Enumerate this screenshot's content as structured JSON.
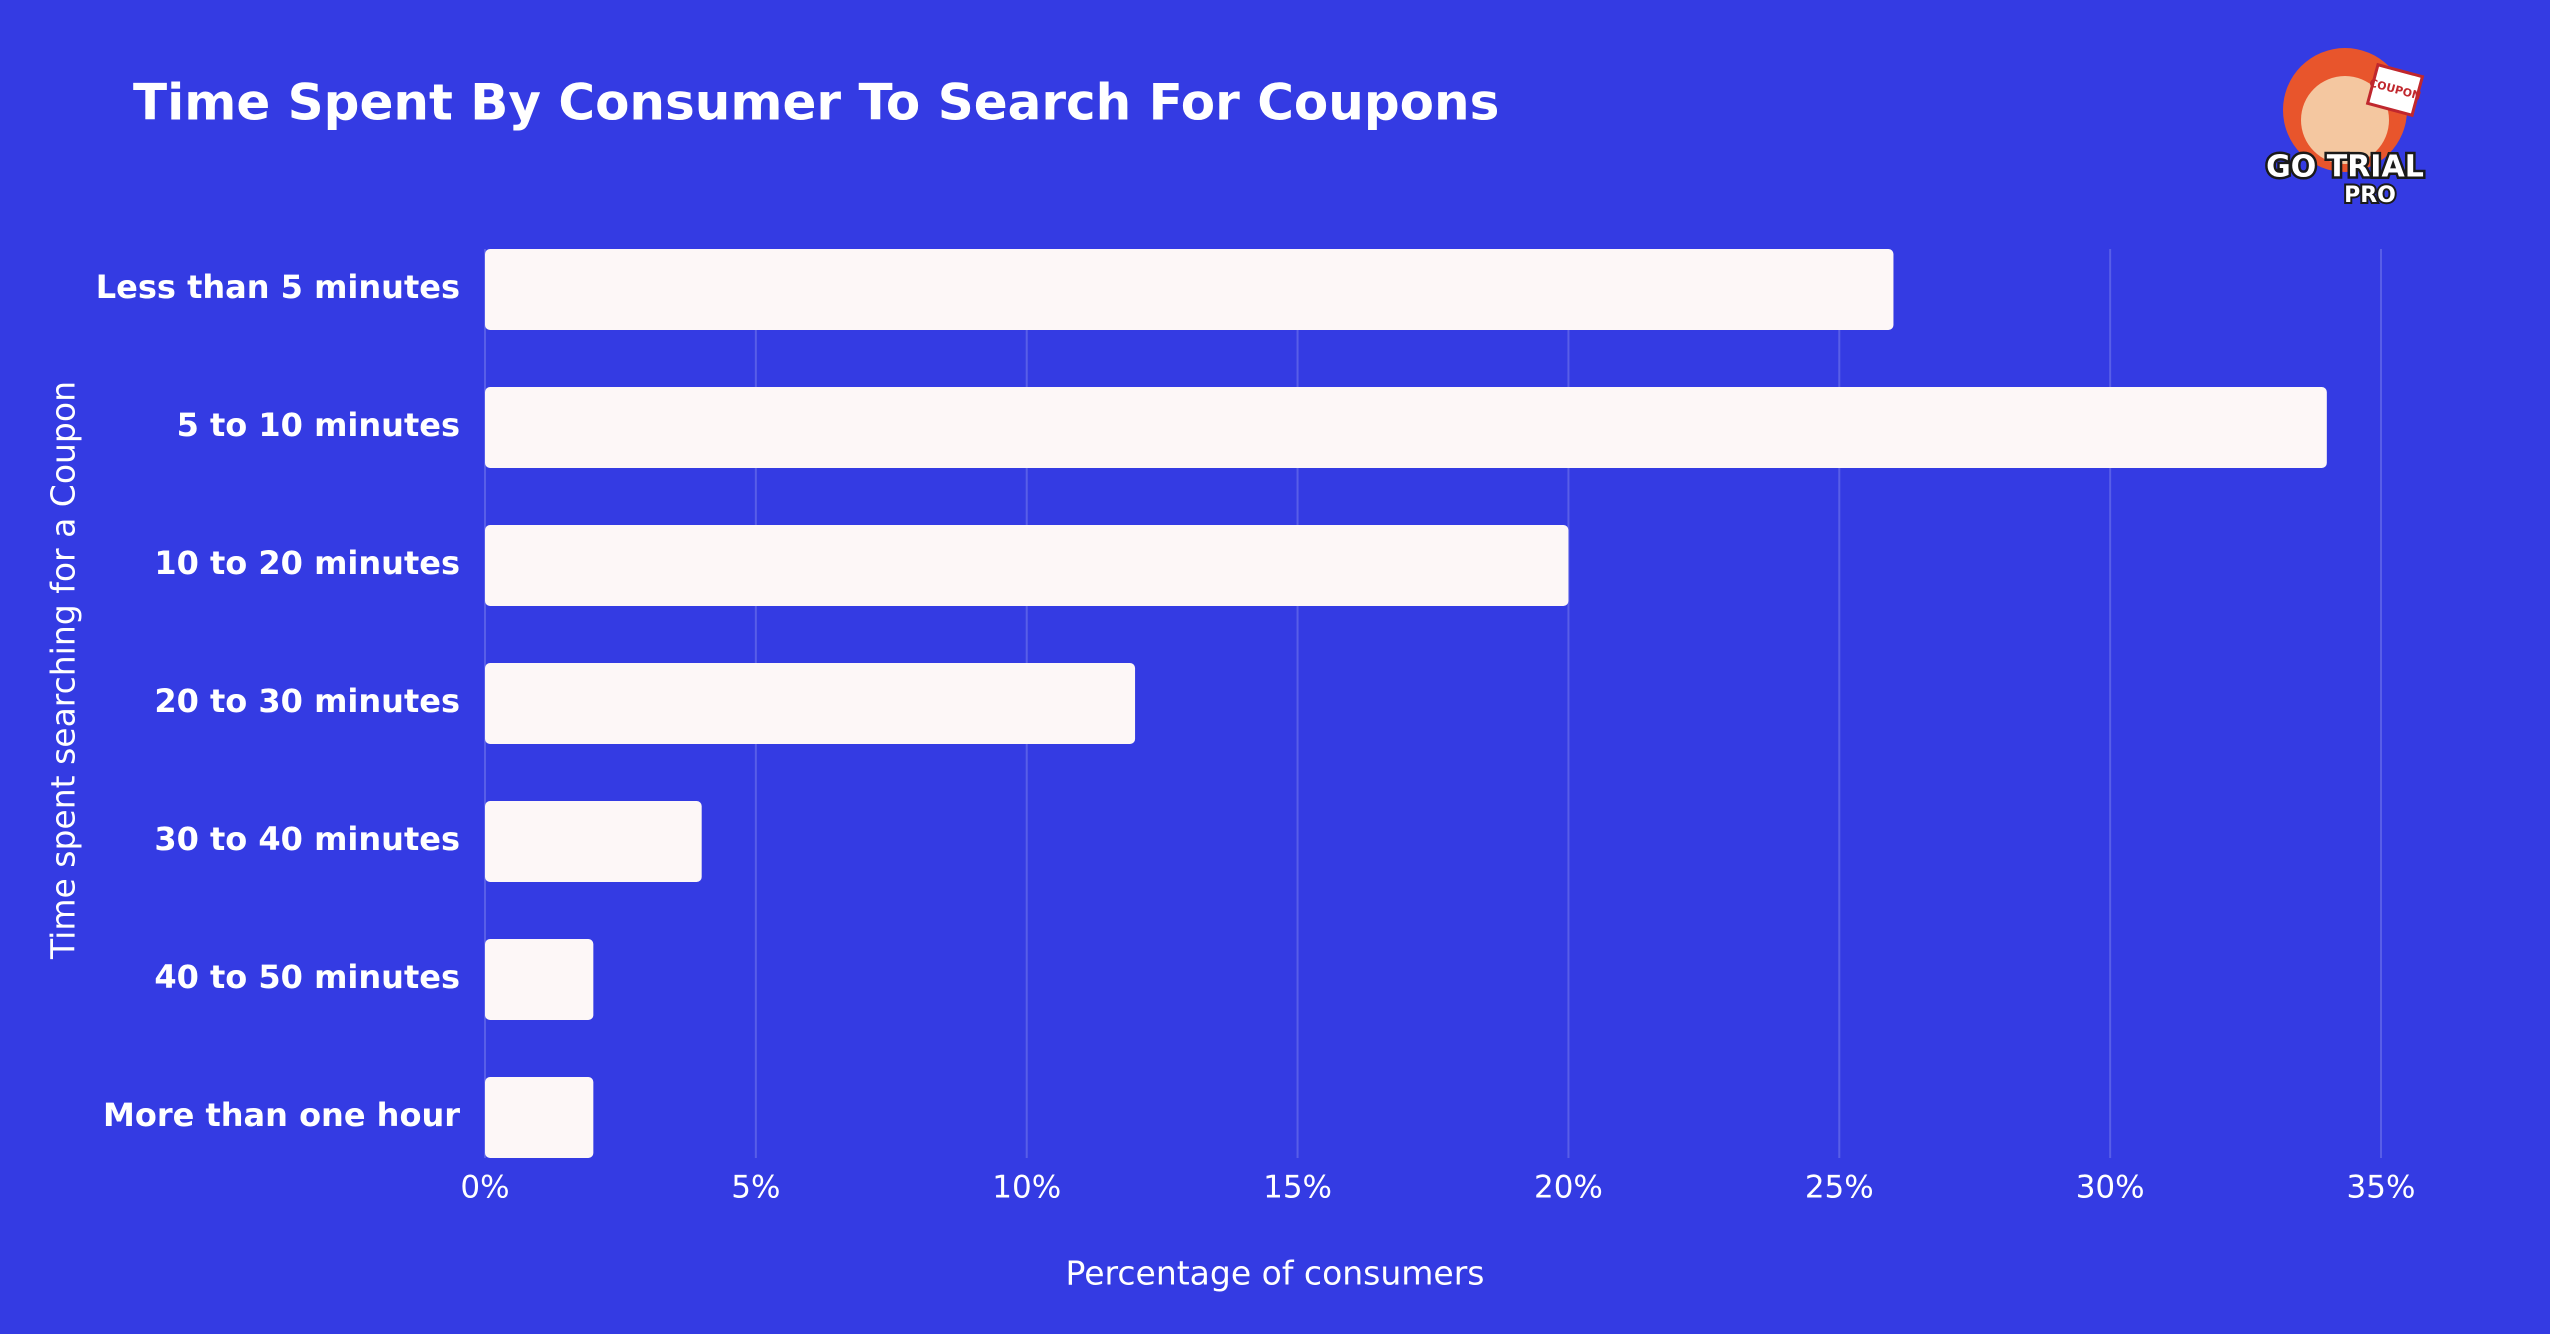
{
  "chart_data": {
    "type": "bar",
    "orientation": "horizontal",
    "title": "Time Spent By Consumer To Search For Coupons",
    "x_label": "Percentage of consumers",
    "y_label": "Time spent searching for a Coupon",
    "categories": [
      "Less than 5 minutes",
      "5 to 10 minutes",
      "10 to 20 minutes",
      "20 to 30 minutes",
      "30 to 40 minutes",
      "40 to 50 minutes",
      "More than one hour"
    ],
    "values": [
      26,
      34,
      20,
      12,
      4,
      2,
      2
    ],
    "color": "#fdf7f7",
    "xlim": [
      0,
      35
    ],
    "xticks": [
      {
        "value": 0,
        "label": "0%"
      },
      {
        "value": 5,
        "label": "5%"
      },
      {
        "value": 10,
        "label": "10%"
      },
      {
        "value": 15,
        "label": "15%"
      },
      {
        "value": 20,
        "label": "20%"
      },
      {
        "value": 25,
        "label": "25%"
      },
      {
        "value": 30,
        "label": "30%"
      },
      {
        "value": 35,
        "label": "35%"
      }
    ],
    "grid": true
  },
  "logo": {
    "line1": "GO TRIAL",
    "line2": "PRO",
    "badge": "COUPON"
  }
}
